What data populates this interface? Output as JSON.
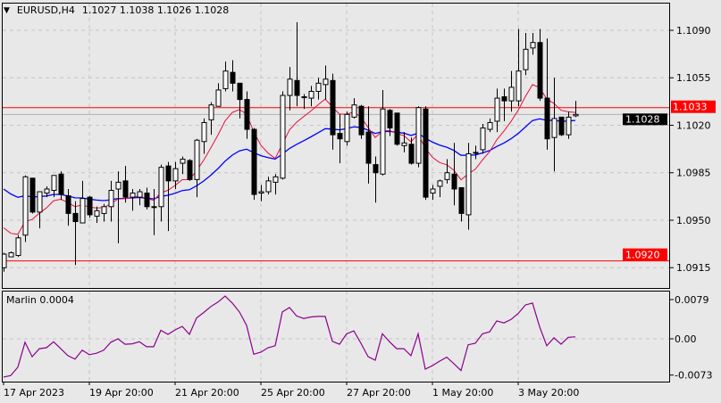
{
  "header": {
    "symbol": "EURUSD,H4",
    "ohlc": "1.1027 1.1038 1.1026 1.1028"
  },
  "indicator": {
    "label": "Marlin 0.0004"
  },
  "colors": {
    "background": "#e8e8e8",
    "grid": "#c4c4c4",
    "level_line": "#ff0000",
    "fast_ma": "#e8103c",
    "slow_ma": "#0000ff",
    "marlin": "#8b008b",
    "bid_line": "#b0b0b0"
  },
  "chart_data": [
    {
      "type": "candlestick",
      "title": "EURUSD,H4",
      "ylim": [
        1.0907,
        1.111
      ],
      "y_ticks": [
        "1.1090",
        "1.1055",
        "1.1020",
        "1.0985",
        "1.0950",
        "1.0915"
      ],
      "x_labels": [
        {
          "index": 0,
          "label": "17 Apr 2023"
        },
        {
          "index": 12,
          "label": "19 Apr 20:00"
        },
        {
          "index": 24,
          "label": "21 Apr 20:00"
        },
        {
          "index": 36,
          "label": "25 Apr 20:00"
        },
        {
          "index": 48,
          "label": "27 Apr 20:00"
        },
        {
          "index": 60,
          "label": "1 May 20:00"
        },
        {
          "index": 72,
          "label": "3 May 20:00"
        }
      ],
      "levels": [
        {
          "price": 1.1033,
          "label": "1.1033"
        },
        {
          "price": 1.092,
          "label": "1.0920"
        }
      ],
      "current_price": {
        "price": 1.1028,
        "label": "1.1028"
      },
      "ohlc": [
        [
          1.0915,
          1.0926,
          1.0912,
          1.0925
        ],
        [
          1.0923,
          1.0927,
          1.0923,
          1.0926
        ],
        [
          1.0924,
          1.0939,
          1.0923,
          1.0937
        ],
        [
          1.0939,
          1.0983,
          1.0934,
          1.0982
        ],
        [
          1.0981,
          1.0981,
          1.0955,
          1.0956
        ],
        [
          1.0956,
          1.0971,
          1.0944,
          1.0971
        ],
        [
          1.097,
          1.0975,
          1.0967,
          1.0973
        ],
        [
          1.0972,
          1.0983,
          1.0967,
          1.0983
        ],
        [
          1.0984,
          1.0986,
          1.0965,
          1.0969
        ],
        [
          1.0968,
          1.0973,
          1.0946,
          1.0955
        ],
        [
          1.0955,
          1.0964,
          1.0917,
          1.0949
        ],
        [
          1.0948,
          1.0979,
          1.0948,
          1.0966
        ],
        [
          1.0967,
          1.0968,
          1.0952,
          1.0954
        ],
        [
          1.0953,
          1.096,
          1.0948,
          1.0957
        ],
        [
          1.0955,
          1.0962,
          1.0949,
          1.096
        ],
        [
          1.096,
          1.0979,
          1.0949,
          1.0972
        ],
        [
          1.0973,
          1.0986,
          1.0933,
          1.0978
        ],
        [
          1.0979,
          1.099,
          1.0963,
          1.0967
        ],
        [
          1.0967,
          1.0973,
          1.0957,
          1.097
        ],
        [
          1.0967,
          1.0973,
          1.0961,
          1.0971
        ],
        [
          1.097,
          1.0974,
          1.0958,
          1.096
        ],
        [
          1.096,
          1.0973,
          1.0939,
          1.096
        ],
        [
          1.096,
          1.0991,
          1.0949,
          1.0989
        ],
        [
          1.099,
          1.0993,
          1.0942,
          1.0979
        ],
        [
          1.0979,
          1.0993,
          1.0973,
          1.0988
        ],
        [
          1.0992,
          1.0997,
          1.0984,
          1.0995
        ],
        [
          1.0994,
          1.0995,
          1.0979,
          1.098
        ],
        [
          1.098,
          1.101,
          1.0967,
          1.1009
        ],
        [
          1.1008,
          1.1025,
          1.0999,
          1.1022
        ],
        [
          1.1024,
          1.1037,
          1.1013,
          1.1035
        ],
        [
          1.1034,
          1.1051,
          1.1034,
          1.1046
        ],
        [
          1.1047,
          1.1067,
          1.1045,
          1.106
        ],
        [
          1.1059,
          1.1068,
          1.1045,
          1.1051
        ],
        [
          1.1051,
          1.1051,
          1.1025,
          1.1039
        ],
        [
          1.1039,
          1.1045,
          1.101,
          1.1017
        ],
        [
          1.1017,
          1.1018,
          1.0965,
          1.0969
        ],
        [
          1.097,
          1.0976,
          1.0964,
          1.0971
        ],
        [
          1.0971,
          1.0982,
          1.0969,
          1.0979
        ],
        [
          1.0978,
          1.0984,
          1.0969,
          1.0982
        ],
        [
          1.0981,
          1.1045,
          1.098,
          1.1042
        ],
        [
          1.1042,
          1.1063,
          1.1031,
          1.1054
        ],
        [
          1.1053,
          1.1096,
          1.1034,
          1.1042
        ],
        [
          1.1041,
          1.1043,
          1.1032,
          1.1041
        ],
        [
          1.104,
          1.1049,
          1.1034,
          1.1045
        ],
        [
          1.1045,
          1.1055,
          1.1039,
          1.1051
        ],
        [
          1.105,
          1.1064,
          1.1039,
          1.1054
        ],
        [
          1.1053,
          1.1058,
          1.1002,
          1.1013
        ],
        [
          1.1014,
          1.1028,
          1.0992,
          1.101
        ],
        [
          1.1008,
          1.103,
          1.1005,
          1.1028
        ],
        [
          1.1026,
          1.104,
          1.1025,
          1.1035
        ],
        [
          1.1034,
          1.1035,
          1.101,
          1.1013
        ],
        [
          1.1015,
          1.1034,
          1.0977,
          1.0992
        ],
        [
          1.0991,
          1.0997,
          1.0963,
          1.0985
        ],
        [
          1.0984,
          1.1046,
          1.0983,
          1.1032
        ],
        [
          1.1031,
          1.1032,
          1.1012,
          1.1018
        ],
        [
          1.1029,
          1.1029,
          1.1005,
          1.1006
        ],
        [
          1.1005,
          1.1015,
          1.1,
          1.1007
        ],
        [
          1.1006,
          1.1011,
          1.0991,
          1.0992
        ],
        [
          1.0992,
          1.1034,
          1.0989,
          1.1033
        ],
        [
          1.1032,
          1.1034,
          1.0965,
          1.0967
        ],
        [
          1.097,
          1.0976,
          1.0965,
          1.0973
        ],
        [
          1.0975,
          1.098,
          1.0967,
          1.0979
        ],
        [
          1.098,
          1.0995,
          1.0977,
          1.0985
        ],
        [
          1.0984,
          1.1007,
          1.0961,
          1.0973
        ],
        [
          1.0974,
          1.0974,
          1.0949,
          1.0955
        ],
        [
          1.0954,
          1.1007,
          1.0943,
          1.0999
        ],
        [
          1.1,
          1.1005,
          1.0995,
          1.1
        ],
        [
          1.1002,
          1.1021,
          1.0999,
          1.1018
        ],
        [
          1.1017,
          1.1025,
          1.1015,
          1.1022
        ],
        [
          1.1023,
          1.1047,
          1.1015,
          1.104
        ],
        [
          1.1041,
          1.1047,
          1.1023,
          1.1038
        ],
        [
          1.1038,
          1.106,
          1.103,
          1.1048
        ],
        [
          1.1038,
          1.1091,
          1.1034,
          1.106
        ],
        [
          1.1061,
          1.1088,
          1.1057,
          1.1076
        ],
        [
          1.1077,
          1.1088,
          1.1072,
          1.1081
        ],
        [
          1.1081,
          1.1091,
          1.1038,
          1.104
        ],
        [
          1.104,
          1.1084,
          1.1002,
          1.101
        ],
        [
          1.1011,
          1.1055,
          1.0986,
          1.1025
        ],
        [
          1.1026,
          1.1026,
          1.1012,
          1.1013
        ],
        [
          1.1013,
          1.103,
          1.101,
          1.1026
        ],
        [
          1.1027,
          1.1038,
          1.1026,
          1.1028
        ]
      ]
    },
    {
      "type": "line",
      "title": "Marlin 0.0004",
      "ylim": [
        -0.0085,
        0.0095
      ],
      "y_ticks": [
        "0.0079",
        "0.00",
        "-0.0073"
      ],
      "y_tick_values": [
        0.0079,
        0.0,
        -0.0073
      ],
      "values": [
        -0.0077,
        -0.0074,
        -0.0057,
        -0.0007,
        -0.0036,
        -0.002,
        -0.0018,
        -0.0006,
        -0.002,
        -0.0034,
        -0.0041,
        -0.0023,
        -0.0032,
        -0.0029,
        -0.0023,
        -0.0007,
        0.0,
        -0.0011,
        -0.001,
        -0.0006,
        -0.0016,
        -0.0016,
        0.0017,
        0.0009,
        0.0018,
        0.0025,
        0.0009,
        0.0042,
        0.0053,
        0.0065,
        0.0074,
        0.0086,
        0.0072,
        0.0054,
        0.0027,
        -0.0031,
        -0.0027,
        -0.0018,
        -0.0014,
        0.0054,
        0.0063,
        0.0046,
        0.0041,
        0.0044,
        0.0045,
        0.0045,
        -0.0005,
        -0.0011,
        0.001,
        0.0016,
        -0.0009,
        -0.0036,
        -0.0043,
        0.001,
        -0.0006,
        -0.002,
        -0.002,
        -0.0034,
        0.001,
        -0.0061,
        -0.0054,
        -0.0045,
        -0.0037,
        -0.005,
        -0.0064,
        -0.0012,
        -0.0009,
        0.001,
        0.0014,
        0.0036,
        0.0032,
        0.0039,
        0.0051,
        0.0068,
        0.0072,
        0.0024,
        -0.0014,
        0.0002,
        -0.0011,
        0.0003,
        0.0004
      ]
    }
  ]
}
